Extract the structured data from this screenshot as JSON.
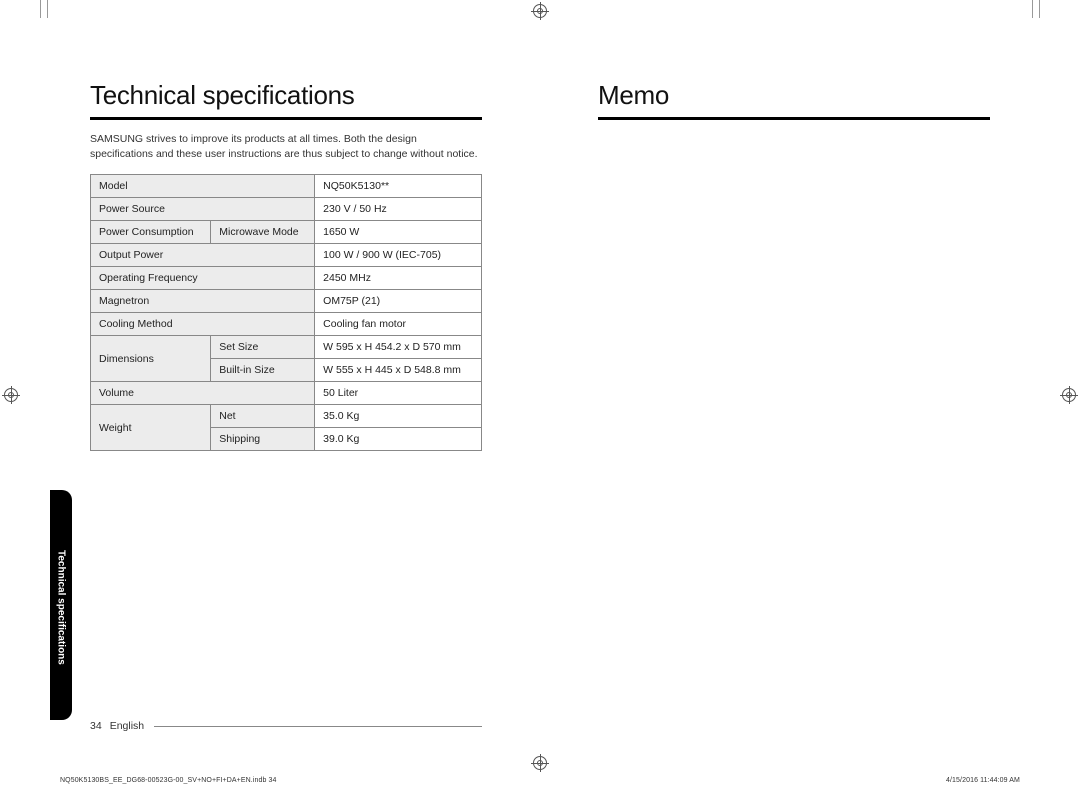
{
  "leftPage": {
    "title": "Technical specifications",
    "intro": "SAMSUNG strives to improve its products at all times. Both the design specifications and these user instructions are thus subject to change without notice.",
    "table": {
      "rows": [
        {
          "label": "Model",
          "sub": null,
          "value": "NQ50K5130**"
        },
        {
          "label": "Power Source",
          "sub": null,
          "value": "230 V / 50 Hz"
        },
        {
          "label": "Power Consumption",
          "sub": "Microwave Mode",
          "value": "1650 W"
        },
        {
          "label": "Output Power",
          "sub": null,
          "value": "100 W / 900 W (IEC-705)"
        },
        {
          "label": "Operating Frequency",
          "sub": null,
          "value": "2450 MHz"
        },
        {
          "label": "Magnetron",
          "sub": null,
          "value": "OM75P (21)"
        },
        {
          "label": "Cooling Method",
          "sub": null,
          "value": "Cooling fan motor"
        },
        {
          "label": "Dimensions",
          "sub": "Set Size",
          "value": "W 595 x H 454.2 x D 570 mm",
          "rowspan": 2
        },
        {
          "label": null,
          "sub": "Built-in Size",
          "value": "W 555 x H 445 x D 548.8 mm"
        },
        {
          "label": "Volume",
          "sub": null,
          "value": "50 Liter"
        },
        {
          "label": "Weight",
          "sub": "Net",
          "value": "35.0 Kg",
          "rowspan": 2
        },
        {
          "label": null,
          "sub": "Shipping",
          "value": "39.0 Kg"
        }
      ]
    },
    "sideTab": "Technical specifications",
    "pageNumber": "34",
    "language": "English"
  },
  "rightPage": {
    "title": "Memo"
  },
  "imprint": {
    "left": "NQ50K5130BS_EE_DG68-00523G-00_SV+NO+FI+DA+EN.indb   34",
    "right": "4/15/2016   11:44:09 AM"
  },
  "colors": {
    "labelBg": "#ececec",
    "border": "#888888",
    "text": "#222222",
    "ruleColor": "#000000"
  }
}
